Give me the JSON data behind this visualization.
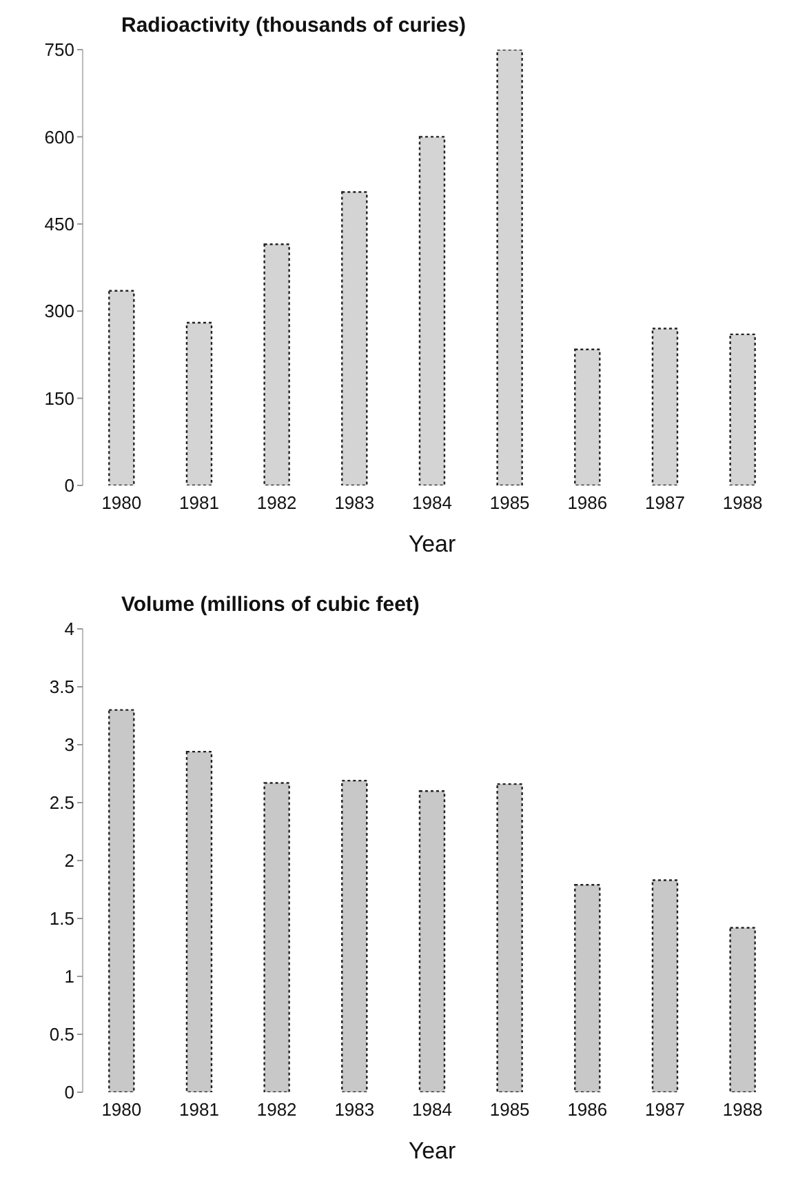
{
  "chart_data": [
    {
      "type": "bar",
      "ylabel": "Radioactivity (thousands of curies)",
      "xlabel": "Year",
      "categories": [
        "1980",
        "1981",
        "1982",
        "1983",
        "1984",
        "1985",
        "1986",
        "1987",
        "1988"
      ],
      "values": [
        335,
        280,
        415,
        505,
        600,
        750,
        234,
        270,
        260
      ],
      "color": "#d4d4d4",
      "ylim": [
        0,
        750
      ],
      "yticks": [
        0,
        150,
        300,
        450,
        600,
        750
      ]
    },
    {
      "type": "bar",
      "ylabel": "Volume (millions of cubic feet)",
      "xlabel": "Year",
      "categories": [
        "1980",
        "1981",
        "1982",
        "1983",
        "1984",
        "1985",
        "1986",
        "1987",
        "1988"
      ],
      "values": [
        3.3,
        2.94,
        2.67,
        2.69,
        2.6,
        2.66,
        1.79,
        1.83,
        1.42
      ],
      "color": "#c8c8c8",
      "ylim": [
        0,
        4
      ],
      "yticks": [
        0,
        0.5,
        1,
        1.5,
        2,
        2.5,
        3,
        3.5,
        4
      ]
    }
  ]
}
